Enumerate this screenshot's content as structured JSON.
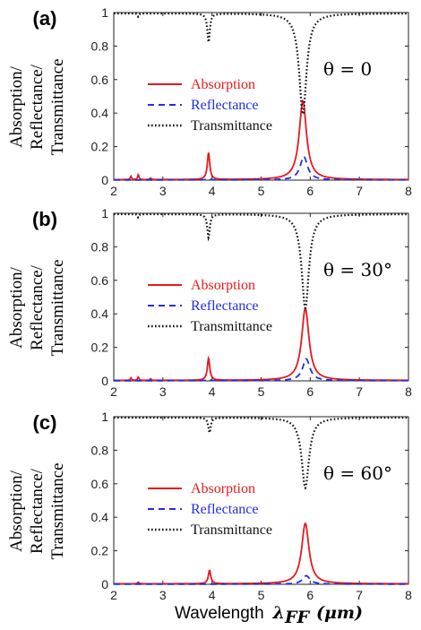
{
  "figure": {
    "xlabel": "Wavelength",
    "xlabel_symbol": "λ",
    "xlabel_subscript": "FF",
    "xlabel_unit": "(μm)"
  },
  "chart_data": [
    {
      "type": "line",
      "panel_label": "(a)",
      "angle_text": "θ = 0",
      "ylabel_lines": [
        "Absorption/",
        "Reflectance/",
        "Transmittance"
      ],
      "xlim": [
        2,
        8
      ],
      "ylim": [
        0,
        1
      ],
      "xticks": [
        "2",
        "3",
        "4",
        "5",
        "6",
        "7",
        "8"
      ],
      "yticks": [
        "0",
        "0.2",
        "0.4",
        "0.6",
        "0.8",
        "1"
      ],
      "legend": [
        "Absorption",
        "Reflectance",
        "Transmittance"
      ],
      "series": [
        {
          "name": "Absorption",
          "color": "#e8191c",
          "dash": "solid",
          "baseline": 0.003,
          "peaks": [
            [
              2.35,
              0.02,
              0.015
            ],
            [
              2.5,
              0.03,
              0.015
            ],
            [
              2.75,
              0.01,
              0.015
            ],
            [
              3.93,
              0.16,
              0.03
            ],
            [
              5.85,
              0.47,
              0.09
            ]
          ]
        },
        {
          "name": "Reflectance",
          "color": "#1f2fe0",
          "dash": "dashed",
          "baseline": 0.001,
          "peaks": [
            [
              3.93,
              0.01,
              0.03
            ],
            [
              5.87,
              0.14,
              0.09
            ]
          ]
        },
        {
          "name": "Transmittance",
          "color": "#111111",
          "dash": "dotted",
          "baseline": 0.995,
          "dips": [
            [
              2.5,
              0.02,
              0.015
            ],
            [
              3.93,
              0.17,
              0.03
            ],
            [
              5.85,
              0.6,
              0.09
            ]
          ]
        }
      ]
    },
    {
      "type": "line",
      "panel_label": "(b)",
      "angle_text": "θ = 30°",
      "ylabel_lines": [
        "Absorption/",
        "Reflectance/",
        "Transmittance"
      ],
      "xlim": [
        2,
        8
      ],
      "ylim": [
        0,
        1
      ],
      "xticks": [
        "2",
        "3",
        "4",
        "5",
        "6",
        "7",
        "8"
      ],
      "yticks": [
        "0",
        "0.2",
        "0.4",
        "0.6",
        "0.8",
        "1"
      ],
      "legend": [
        "Absorption",
        "Reflectance",
        "Transmittance"
      ],
      "series": [
        {
          "name": "Absorption",
          "color": "#e8191c",
          "dash": "solid",
          "baseline": 0.003,
          "peaks": [
            [
              2.35,
              0.015,
              0.015
            ],
            [
              2.5,
              0.02,
              0.015
            ],
            [
              2.75,
              0.01,
              0.015
            ],
            [
              3.93,
              0.13,
              0.03
            ],
            [
              5.9,
              0.43,
              0.09
            ]
          ]
        },
        {
          "name": "Reflectance",
          "color": "#1f2fe0",
          "dash": "dashed",
          "baseline": 0.001,
          "peaks": [
            [
              3.93,
              0.01,
              0.03
            ],
            [
              5.92,
              0.13,
              0.09
            ]
          ]
        },
        {
          "name": "Transmittance",
          "color": "#111111",
          "dash": "dotted",
          "baseline": 0.995,
          "dips": [
            [
              2.5,
              0.02,
              0.015
            ],
            [
              3.93,
              0.14,
              0.03
            ],
            [
              5.9,
              0.56,
              0.09
            ]
          ]
        }
      ]
    },
    {
      "type": "line",
      "panel_label": "(c)",
      "angle_text": "θ = 60°",
      "ylabel_lines": [
        "Absorption/",
        "Reflectance/",
        "Transmittance"
      ],
      "xlim": [
        2,
        8
      ],
      "ylim": [
        0,
        1
      ],
      "xticks": [
        "2",
        "3",
        "4",
        "5",
        "6",
        "7",
        "8"
      ],
      "yticks": [
        "0",
        "0.2",
        "0.4",
        "0.6",
        "0.8",
        "1"
      ],
      "legend": [
        "Absorption",
        "Reflectance",
        "Transmittance"
      ],
      "series": [
        {
          "name": "Absorption",
          "color": "#e8191c",
          "dash": "solid",
          "baseline": 0.003,
          "peaks": [
            [
              2.5,
              0.01,
              0.015
            ],
            [
              3.95,
              0.08,
              0.03
            ],
            [
              5.9,
              0.36,
              0.09
            ]
          ]
        },
        {
          "name": "Reflectance",
          "color": "#1f2fe0",
          "dash": "dashed",
          "baseline": 0.001,
          "peaks": [
            [
              5.92,
              0.05,
              0.09
            ]
          ]
        },
        {
          "name": "Transmittance",
          "color": "#111111",
          "dash": "dotted",
          "baseline": 0.995,
          "dips": [
            [
              3.95,
              0.09,
              0.03
            ],
            [
              5.9,
              0.42,
              0.09
            ]
          ]
        }
      ]
    }
  ]
}
